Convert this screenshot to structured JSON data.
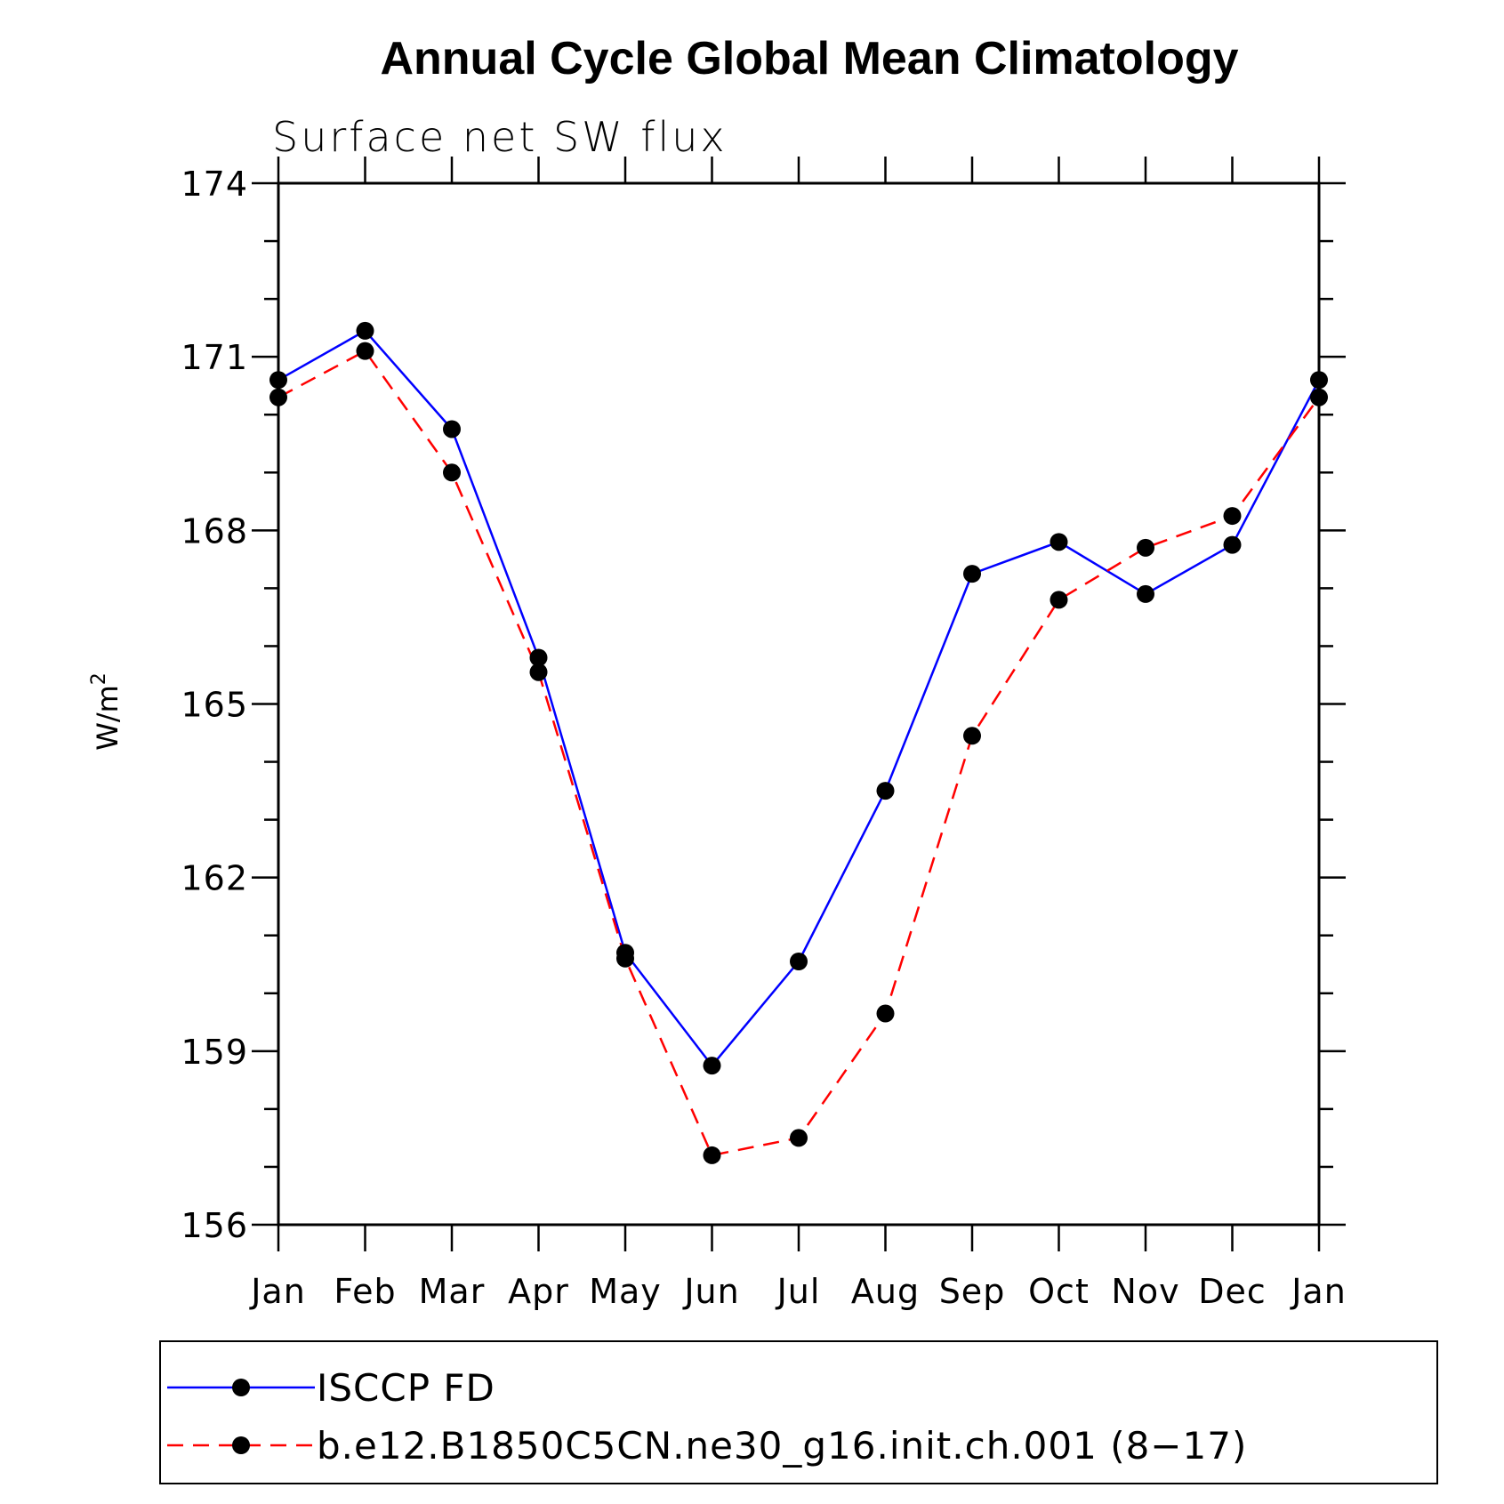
{
  "chart_data": {
    "type": "line",
    "title": "Annual Cycle Global Mean Climatology",
    "subtitle": "Surface net SW flux",
    "ylabel": "W/m",
    "ylabel_superscript": "2",
    "categories": [
      "Jan",
      "Feb",
      "Mar",
      "Apr",
      "May",
      "Jun",
      "Jul",
      "Aug",
      "Sep",
      "Oct",
      "Nov",
      "Dec",
      "Jan"
    ],
    "ylim": [
      156,
      174
    ],
    "yticks": [
      "156",
      "159",
      "162",
      "165",
      "168",
      "171",
      "174"
    ],
    "grid": false,
    "legend_position": "bottom",
    "series": [
      {
        "name": "ISCCP FD",
        "color": "#0000ff",
        "style": "solid",
        "marker": "filled-circle",
        "values": [
          170.6,
          171.45,
          169.75,
          165.8,
          160.7,
          158.75,
          160.55,
          163.5,
          167.25,
          167.8,
          166.9,
          167.75,
          170.6
        ]
      },
      {
        "name": "b.e12.B1850C5CN.ne30_g16.init.ch.001 (8−17)",
        "color": "#ff0000",
        "style": "dashed",
        "marker": "filled-circle",
        "values": [
          170.3,
          171.1,
          169.0,
          165.55,
          160.6,
          157.2,
          157.5,
          159.65,
          164.45,
          166.8,
          167.7,
          168.25,
          170.3
        ]
      }
    ]
  }
}
